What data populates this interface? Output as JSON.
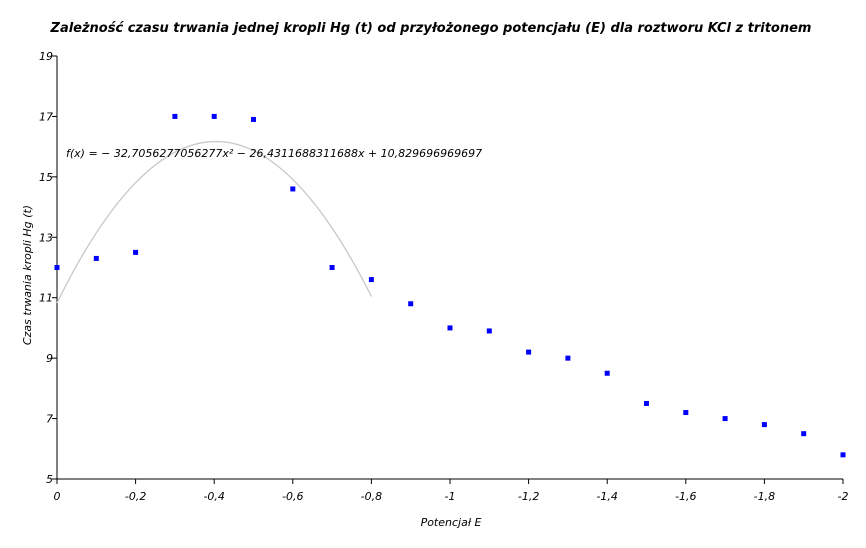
{
  "chart_data": {
    "type": "scatter",
    "title": "Zależność czasu trwania jednej kropli Hg (t) od przyłożonego potencjału (E) dla roztworu KCl z tritonem",
    "xlabel": "Potencjał E",
    "ylabel": "Czas trwania kropli Hg (t)",
    "xlim": [
      0,
      -2
    ],
    "ylim": [
      5,
      19
    ],
    "x_ticks": [
      "0",
      "-0,2",
      "-0,4",
      "-0,6",
      "-0,8",
      "-1",
      "-1,2",
      "-1,4",
      "-1,6",
      "-1,8",
      "-2"
    ],
    "x_tick_values": [
      0,
      -0.2,
      -0.4,
      -0.6,
      -0.8,
      -1,
      -1.2,
      -1.4,
      -1.6,
      -1.8,
      -2
    ],
    "y_ticks": [
      "5",
      "7",
      "9",
      "11",
      "13",
      "15",
      "17",
      "19"
    ],
    "y_tick_values": [
      5,
      7,
      9,
      11,
      13,
      15,
      17,
      19
    ],
    "grid": false,
    "marker_color": "#0000ff",
    "trendline_color": "#c8c8c8",
    "series": [
      {
        "x": [
          0,
          -0.1,
          -0.2,
          -0.3,
          -0.4,
          -0.5,
          -0.6,
          -0.7,
          -0.8,
          -0.9,
          -1.0,
          -1.1,
          -1.2,
          -1.3,
          -1.4,
          -1.5,
          -1.6,
          -1.7,
          -1.8,
          -1.9,
          -2.0
        ],
        "y": [
          12.0,
          12.3,
          12.5,
          17.0,
          17.0,
          16.9,
          14.6,
          12.0,
          11.6,
          10.8,
          10.0,
          9.9,
          9.2,
          9.0,
          8.5,
          7.5,
          7.2,
          7.0,
          6.8,
          6.5,
          5.8
        ]
      }
    ],
    "trendline": {
      "equation": "f(x) = − 32,7056277056277x² − 26,4311688311688x + 10,829696969697",
      "coefficients": {
        "a": -32.7056277056277,
        "b": -26.4311688311688,
        "c": 10.829696969697
      },
      "x_range": [
        0,
        -0.8
      ]
    }
  }
}
